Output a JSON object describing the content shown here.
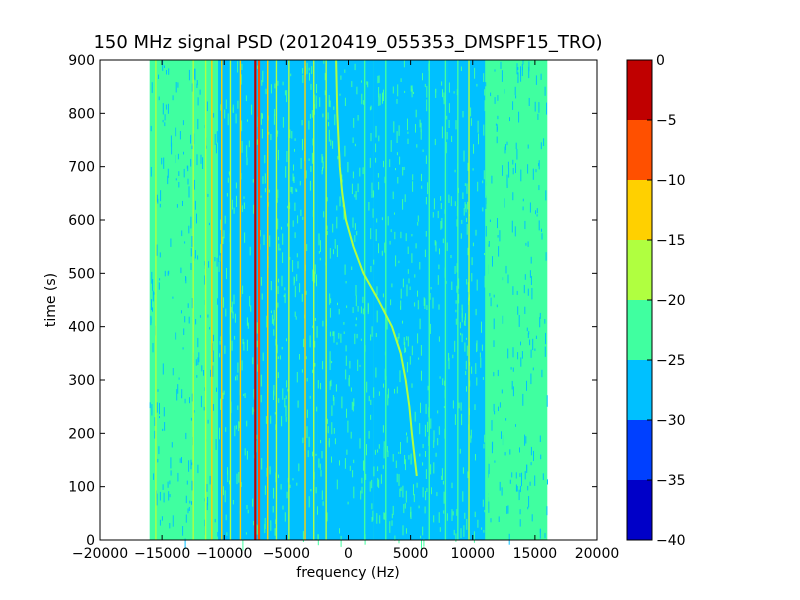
{
  "chart_data": {
    "type": "heatmap",
    "title": "150 MHz signal PSD (20120419_055353_DMSPF15_TRO)",
    "xlabel": "frequency (Hz)",
    "ylabel": "time (s)",
    "xlim": [
      -20000,
      20000
    ],
    "ylim": [
      0,
      900
    ],
    "xticks": [
      -20000,
      -15000,
      -10000,
      -5000,
      0,
      5000,
      10000,
      15000,
      20000
    ],
    "xtick_labels": [
      "−20000",
      "−15000",
      "−10000",
      "−5000",
      "0",
      "5000",
      "10000",
      "15000",
      "20000"
    ],
    "yticks": [
      0,
      100,
      200,
      300,
      400,
      500,
      600,
      700,
      800,
      900
    ],
    "ytick_labels": [
      "0",
      "100",
      "200",
      "300",
      "400",
      "500",
      "600",
      "700",
      "800",
      "900"
    ],
    "grid": false,
    "data_extent": {
      "freq_min": -16000,
      "freq_max": 16000,
      "time_min": 0,
      "time_max": 900
    },
    "background_level": -22.5,
    "colorbar": {
      "levels": [
        -40,
        -35,
        -30,
        -25,
        -20,
        -15,
        -10,
        -5,
        0
      ],
      "labels": [
        "−40",
        "−35",
        "−30",
        "−25",
        "−20",
        "−15",
        "−10",
        "−5",
        "0"
      ],
      "colors": [
        "#0000c8",
        "#0040ff",
        "#00c0ff",
        "#40ffa0",
        "#b0ff40",
        "#ffd000",
        "#ff5000",
        "#c00000"
      ]
    },
    "bands": [
      {
        "f0": 2000,
        "f1": 8000,
        "level": -27.5
      },
      {
        "f0": -2500,
        "f1": 2000,
        "level": -27.5
      },
      {
        "f0": 8000,
        "f1": 11000,
        "level": -27.5
      },
      {
        "f0": -10500,
        "f1": -2500,
        "level": -26
      }
    ],
    "constant_lines": [
      {
        "f": -15500,
        "level": -17.5
      },
      {
        "f": -14000,
        "level": -22
      },
      {
        "f": -12500,
        "level": -17.5
      },
      {
        "f": -11500,
        "level": -17.5
      },
      {
        "f": -11000,
        "level": -12.5
      },
      {
        "f": -10200,
        "level": -12.5
      },
      {
        "f": -9500,
        "level": -17.5
      },
      {
        "f": -8700,
        "level": -12.5
      },
      {
        "f": -7500,
        "level": -2.5
      },
      {
        "f": -7200,
        "level": -7.5
      },
      {
        "f": -6500,
        "level": -12.5
      },
      {
        "f": -5800,
        "level": -17.5
      },
      {
        "f": -4800,
        "level": -17.5
      },
      {
        "f": -3500,
        "level": -12.5
      },
      {
        "f": -2800,
        "level": -17.5
      },
      {
        "f": -1800,
        "level": -17.5
      },
      {
        "f": 1300,
        "level": -22
      },
      {
        "f": 3000,
        "level": -22
      },
      {
        "f": 6500,
        "level": -22
      },
      {
        "f": 7800,
        "level": -22
      },
      {
        "f": 8800,
        "level": -22
      },
      {
        "f": 9700,
        "level": -17.5
      },
      {
        "f": 11200,
        "level": -22
      },
      {
        "f": 12500,
        "level": -22
      }
    ],
    "doppler_track": {
      "level": -17.5,
      "points": [
        {
          "t": 120,
          "f": 5500
        },
        {
          "t": 200,
          "f": 5100
        },
        {
          "t": 250,
          "f": 4900
        },
        {
          "t": 300,
          "f": 4600
        },
        {
          "t": 350,
          "f": 4200
        },
        {
          "t": 400,
          "f": 3500
        },
        {
          "t": 450,
          "f": 2400
        },
        {
          "t": 500,
          "f": 1200
        },
        {
          "t": 550,
          "f": 400
        },
        {
          "t": 600,
          "f": -200
        },
        {
          "t": 650,
          "f": -500
        },
        {
          "t": 700,
          "f": -700
        },
        {
          "t": 800,
          "f": -900
        },
        {
          "t": 900,
          "f": -1000
        }
      ]
    }
  }
}
